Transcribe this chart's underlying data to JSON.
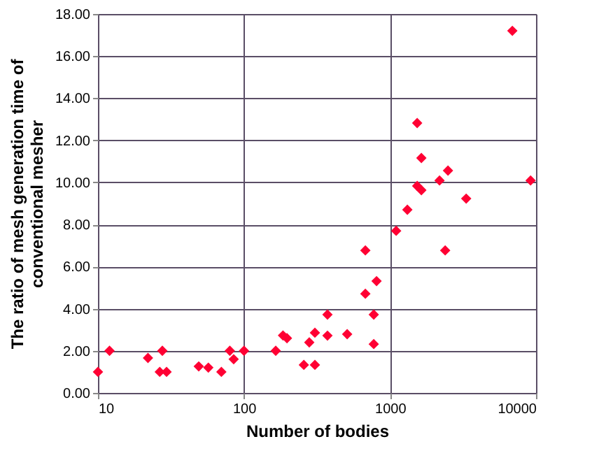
{
  "chart_data": {
    "type": "scatter",
    "xlabel": "Number of bodies",
    "ylabel": "The ratio of mesh generation time of\nconventional mesher",
    "log": "x",
    "xlim": [
      10,
      10000
    ],
    "xticks": [
      10,
      100,
      1000,
      10000
    ],
    "ylim": [
      0,
      18
    ],
    "yticks": [
      {
        "value": 0,
        "label": "0.00"
      },
      {
        "value": 2,
        "label": "2.00"
      },
      {
        "value": 4,
        "label": "4.00"
      },
      {
        "value": 6,
        "label": "6.00"
      },
      {
        "value": 8,
        "label": "8.00"
      },
      {
        "value": 10,
        "label": "10.00"
      },
      {
        "value": 12,
        "label": "12.00"
      },
      {
        "value": 14,
        "label": "14.00"
      },
      {
        "value": 16,
        "label": "16.00"
      },
      {
        "value": 18,
        "label": "18.00"
      }
    ],
    "grid": true,
    "marker": "diamond",
    "x": [
      10,
      12,
      22,
      26.5,
      27.6,
      29.5,
      49,
      57,
      70,
      80,
      85,
      100,
      165,
      185,
      197,
      257,
      280,
      306,
      306,
      373,
      373,
      509,
      678,
      678,
      774,
      774,
      809,
      1102,
      1315,
      1535,
      1640,
      1535,
      1640,
      2184,
      2495,
      2387,
      3325,
      6885,
      9180
    ],
    "series": [
      {
        "color": "#ff0033",
        "values": [
          1.0,
          2.0,
          1.66,
          1.0,
          2.0,
          1.0,
          1.26,
          1.2,
          1.0,
          2.0,
          1.6,
          2.0,
          2.0,
          2.73,
          2.6,
          1.33,
          2.4,
          2.86,
          1.33,
          3.72,
          2.72,
          2.79,
          6.77,
          4.71,
          3.72,
          2.32,
          5.31,
          7.7,
          8.7,
          9.83,
          9.63,
          12.82,
          11.16,
          10.09,
          10.56,
          6.77,
          9.23,
          17.2,
          10.09
        ]
      }
    ]
  }
}
